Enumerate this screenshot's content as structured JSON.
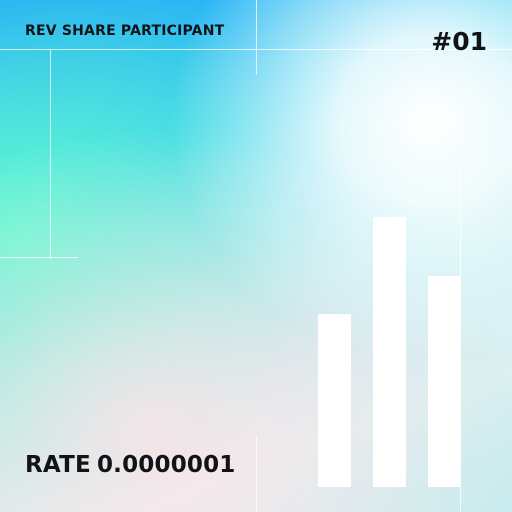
{
  "header": {
    "title": "REV SHARE PARTICIPANT",
    "number": "#01"
  },
  "footer": {
    "rate_label": "RATE",
    "rate_value": "0.0000001"
  },
  "bars": {
    "color": "#ffffff",
    "levels": [
      0.64,
      1.0,
      0.78
    ]
  }
}
